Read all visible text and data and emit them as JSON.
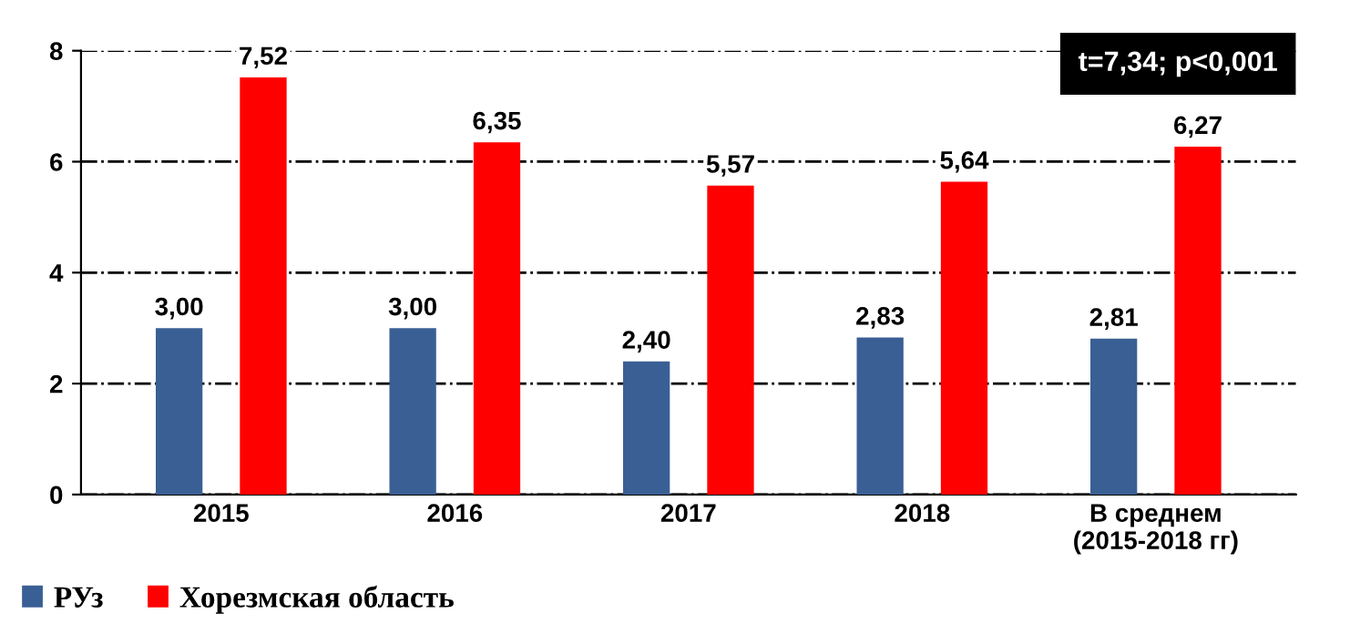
{
  "chart_data": {
    "type": "bar",
    "categories": [
      "2015",
      "2016",
      "2017",
      "2018",
      "В среднем\n(2015-2018 гг)"
    ],
    "series": [
      {
        "name": "РУз",
        "color": "#3a5f94",
        "values": [
          3.0,
          3.0,
          2.4,
          2.83,
          2.81
        ],
        "value_labels": [
          "3,00",
          "3,00",
          "2,40",
          "2,83",
          "2,81"
        ]
      },
      {
        "name": "Хорезмская область",
        "color": "#ff0000",
        "values": [
          7.52,
          6.35,
          5.57,
          5.64,
          6.27
        ],
        "value_labels": [
          "7,52",
          "6,35",
          "5,57",
          "5,64",
          "6,27"
        ]
      }
    ],
    "ylim": [
      0,
      8
    ],
    "yticks": [
      0,
      2,
      4,
      6,
      8
    ],
    "grid": "y",
    "legend": "bottom left",
    "annotations": [
      "t=7,34; p<0,001"
    ]
  }
}
